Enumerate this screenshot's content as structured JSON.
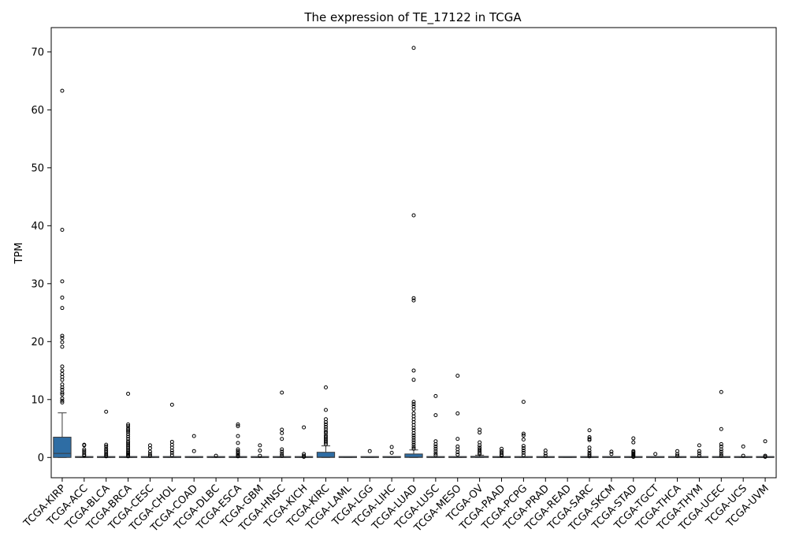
{
  "chart_data": {
    "type": "box",
    "title": "The expression of TE_17122 in TCGA",
    "xlabel": "",
    "ylabel": "TPM",
    "ylim": [
      -3.5,
      74.2
    ],
    "yticks": [
      0,
      10,
      20,
      30,
      40,
      50,
      60,
      70
    ],
    "grid": false,
    "legend": "none",
    "box_color": "#2e6da4",
    "edge_color": "#3a3a3a",
    "categories": [
      "TCGA-KIRP",
      "TCGA-ACC",
      "TCGA-BLCA",
      "TCGA-BRCA",
      "TCGA-CESC",
      "TCGA-CHOL",
      "TCGA-COAD",
      "TCGA-DLBC",
      "TCGA-ESCA",
      "TCGA-GBM",
      "TCGA-HNSC",
      "TCGA-KICH",
      "TCGA-KIRC",
      "TCGA-LAML",
      "TCGA-LGG",
      "TCGA-LIHC",
      "TCGA-LUAD",
      "TCGA-LUSC",
      "TCGA-MESO",
      "TCGA-OV",
      "TCGA-PAAD",
      "TCGA-PCPG",
      "TCGA-PRAD",
      "TCGA-READ",
      "TCGA-SARC",
      "TCGA-SKCM",
      "TCGA-STAD",
      "TCGA-TGCT",
      "TCGA-THCA",
      "TCGA-THYM",
      "TCGA-UCEC",
      "TCGA-UCS",
      "TCGA-UVM"
    ],
    "boxes": [
      {
        "q1": 0.0,
        "median": 0.7,
        "q3": 3.5,
        "whisker_low": 0.0,
        "whisker_high": 7.7,
        "outliers": [
          63.3,
          39.3,
          30.4,
          27.6,
          25.8,
          21.0,
          20.6,
          19.9,
          19.1,
          15.7,
          15.0,
          14.4,
          13.9,
          13.4,
          12.6,
          12.1,
          11.7,
          11.2,
          10.9,
          10.2,
          9.8,
          9.5
        ]
      },
      {
        "q1": 0.0,
        "median": 0.0,
        "q3": 0.05,
        "whisker_low": 0.0,
        "whisker_high": 0.1,
        "outliers": [
          2.2,
          2.1,
          1.4,
          1.1,
          0.8,
          0.5,
          0.3
        ]
      },
      {
        "q1": 0.0,
        "median": 0.0,
        "q3": 0.05,
        "whisker_low": 0.0,
        "whisker_high": 0.1,
        "outliers": [
          7.9,
          2.2,
          1.9,
          1.5,
          1.2,
          0.9,
          0.6,
          0.4,
          0.2
        ]
      },
      {
        "q1": 0.0,
        "median": 0.0,
        "q3": 0.05,
        "whisker_low": 0.0,
        "whisker_high": 0.1,
        "outliers": [
          11.0,
          5.7,
          5.4,
          5.0,
          4.7,
          4.4,
          4.0,
          3.6,
          3.2,
          2.8,
          2.5,
          2.2,
          1.9,
          1.6,
          1.3,
          1.0,
          0.8,
          0.6,
          0.4,
          0.2
        ]
      },
      {
        "q1": 0.0,
        "median": 0.0,
        "q3": 0.05,
        "whisker_low": 0.0,
        "whisker_high": 0.1,
        "outliers": [
          2.1,
          1.6,
          1.0,
          0.6,
          0.3
        ]
      },
      {
        "q1": 0.0,
        "median": 0.0,
        "q3": 0.05,
        "whisker_low": 0.0,
        "whisker_high": 0.1,
        "outliers": [
          9.1,
          2.7,
          2.2,
          1.7,
          1.2,
          0.8,
          0.4
        ]
      },
      {
        "q1": 0.0,
        "median": 0.0,
        "q3": 0.03,
        "whisker_low": 0.0,
        "whisker_high": 0.05,
        "outliers": [
          3.7,
          1.1
        ]
      },
      {
        "q1": 0.0,
        "median": 0.0,
        "q3": 0.02,
        "whisker_low": 0.0,
        "whisker_high": 0.05,
        "outliers": [
          0.3
        ]
      },
      {
        "q1": 0.0,
        "median": 0.0,
        "q3": 0.05,
        "whisker_low": 0.0,
        "whisker_high": 0.1,
        "outliers": [
          5.7,
          5.4,
          3.7,
          2.5,
          1.4,
          1.1,
          0.8,
          0.6,
          0.4,
          0.2
        ]
      },
      {
        "q1": 0.0,
        "median": 0.0,
        "q3": 0.03,
        "whisker_low": 0.0,
        "whisker_high": 0.05,
        "outliers": [
          2.1,
          1.2,
          0.3
        ]
      },
      {
        "q1": 0.0,
        "median": 0.0,
        "q3": 0.05,
        "whisker_low": 0.0,
        "whisker_high": 0.1,
        "outliers": [
          11.2,
          4.8,
          4.2,
          3.2,
          1.4,
          1.0,
          0.6,
          0.3
        ]
      },
      {
        "q1": 0.0,
        "median": 0.0,
        "q3": 0.05,
        "whisker_low": 0.0,
        "whisker_high": 0.1,
        "outliers": [
          5.2,
          0.6,
          0.3,
          0.1
        ]
      },
      {
        "q1": 0.0,
        "median": 0.05,
        "q3": 0.9,
        "whisker_low": 0.0,
        "whisker_high": 2.0,
        "outliers": [
          12.1,
          8.2,
          6.6,
          6.1,
          5.7,
          5.3,
          4.9,
          4.5,
          4.2,
          3.8,
          3.5,
          3.2,
          2.9,
          2.6,
          2.3
        ]
      },
      {
        "q1": 0.0,
        "median": 0.0,
        "q3": 0.02,
        "whisker_low": 0.0,
        "whisker_high": 0.05,
        "outliers": []
      },
      {
        "q1": 0.0,
        "median": 0.0,
        "q3": 0.02,
        "whisker_low": 0.0,
        "whisker_high": 0.05,
        "outliers": [
          1.1
        ]
      },
      {
        "q1": 0.0,
        "median": 0.0,
        "q3": 0.02,
        "whisker_low": 0.0,
        "whisker_high": 0.05,
        "outliers": [
          1.8,
          0.8
        ]
      },
      {
        "q1": 0.0,
        "median": 0.05,
        "q3": 0.6,
        "whisker_low": 0.0,
        "whisker_high": 1.3,
        "outliers": [
          70.7,
          41.8,
          27.5,
          27.1,
          15.0,
          13.4,
          9.6,
          9.2,
          8.8,
          8.3,
          7.6,
          7.1,
          6.6,
          6.1,
          5.6,
          5.1,
          4.7,
          4.2,
          3.8,
          3.4,
          3.0,
          2.6,
          2.2,
          1.8,
          1.5
        ]
      },
      {
        "q1": 0.0,
        "median": 0.0,
        "q3": 0.05,
        "whisker_low": 0.0,
        "whisker_high": 0.1,
        "outliers": [
          10.6,
          7.3,
          2.8,
          2.3,
          1.9,
          1.5,
          1.1,
          0.7,
          0.4
        ]
      },
      {
        "q1": 0.0,
        "median": 0.0,
        "q3": 0.05,
        "whisker_low": 0.0,
        "whisker_high": 0.1,
        "outliers": [
          14.1,
          7.6,
          3.2,
          1.9,
          1.4,
          0.9,
          0.5
        ]
      },
      {
        "q1": 0.0,
        "median": 0.05,
        "q3": 0.2,
        "whisker_low": 0.0,
        "whisker_high": 0.4,
        "outliers": [
          4.8,
          4.3,
          2.6,
          2.1,
          1.7,
          1.4,
          1.1,
          0.8,
          0.6
        ]
      },
      {
        "q1": 0.0,
        "median": 0.0,
        "q3": 0.05,
        "whisker_low": 0.0,
        "whisker_high": 0.1,
        "outliers": [
          1.5,
          1.1,
          0.8,
          0.5,
          0.3
        ]
      },
      {
        "q1": 0.0,
        "median": 0.0,
        "q3": 0.05,
        "whisker_low": 0.0,
        "whisker_high": 0.1,
        "outliers": [
          9.6,
          4.1,
          3.8,
          3.1,
          2.0,
          1.6,
          1.2,
          0.8,
          0.4
        ]
      },
      {
        "q1": 0.0,
        "median": 0.0,
        "q3": 0.02,
        "whisker_low": 0.0,
        "whisker_high": 0.05,
        "outliers": [
          1.2,
          0.7,
          0.3
        ]
      },
      {
        "q1": 0.0,
        "median": 0.0,
        "q3": 0.02,
        "whisker_low": 0.0,
        "whisker_high": 0.05,
        "outliers": []
      },
      {
        "q1": 0.0,
        "median": 0.0,
        "q3": 0.05,
        "whisker_low": 0.0,
        "whisker_high": 0.1,
        "outliers": [
          4.7,
          3.5,
          3.2,
          3.0,
          1.7,
          1.2,
          0.8,
          0.5,
          0.2
        ]
      },
      {
        "q1": 0.0,
        "median": 0.0,
        "q3": 0.02,
        "whisker_low": 0.0,
        "whisker_high": 0.05,
        "outliers": [
          1.0,
          0.6
        ]
      },
      {
        "q1": 0.0,
        "median": 0.0,
        "q3": 0.05,
        "whisker_low": 0.0,
        "whisker_high": 0.1,
        "outliers": [
          3.3,
          2.6,
          1.1,
          0.9,
          0.7,
          0.5,
          0.3,
          0.1
        ]
      },
      {
        "q1": 0.0,
        "median": 0.0,
        "q3": 0.02,
        "whisker_low": 0.0,
        "whisker_high": 0.05,
        "outliers": [
          0.6
        ]
      },
      {
        "q1": 0.0,
        "median": 0.0,
        "q3": 0.02,
        "whisker_low": 0.0,
        "whisker_high": 0.05,
        "outliers": [
          1.1,
          0.6,
          0.3
        ]
      },
      {
        "q1": 0.0,
        "median": 0.0,
        "q3": 0.02,
        "whisker_low": 0.0,
        "whisker_high": 0.05,
        "outliers": [
          2.1,
          1.1,
          0.7,
          0.3
        ]
      },
      {
        "q1": 0.0,
        "median": 0.0,
        "q3": 0.05,
        "whisker_low": 0.0,
        "whisker_high": 0.1,
        "outliers": [
          11.3,
          4.9,
          2.3,
          1.9,
          1.4,
          1.0,
          0.6,
          0.3
        ]
      },
      {
        "q1": 0.0,
        "median": 0.0,
        "q3": 0.02,
        "whisker_low": 0.0,
        "whisker_high": 0.05,
        "outliers": [
          1.9,
          0.3
        ]
      },
      {
        "q1": 0.0,
        "median": 0.0,
        "q3": 0.02,
        "whisker_low": 0.0,
        "whisker_high": 0.05,
        "outliers": [
          2.8,
          0.3,
          0.1
        ]
      }
    ]
  }
}
